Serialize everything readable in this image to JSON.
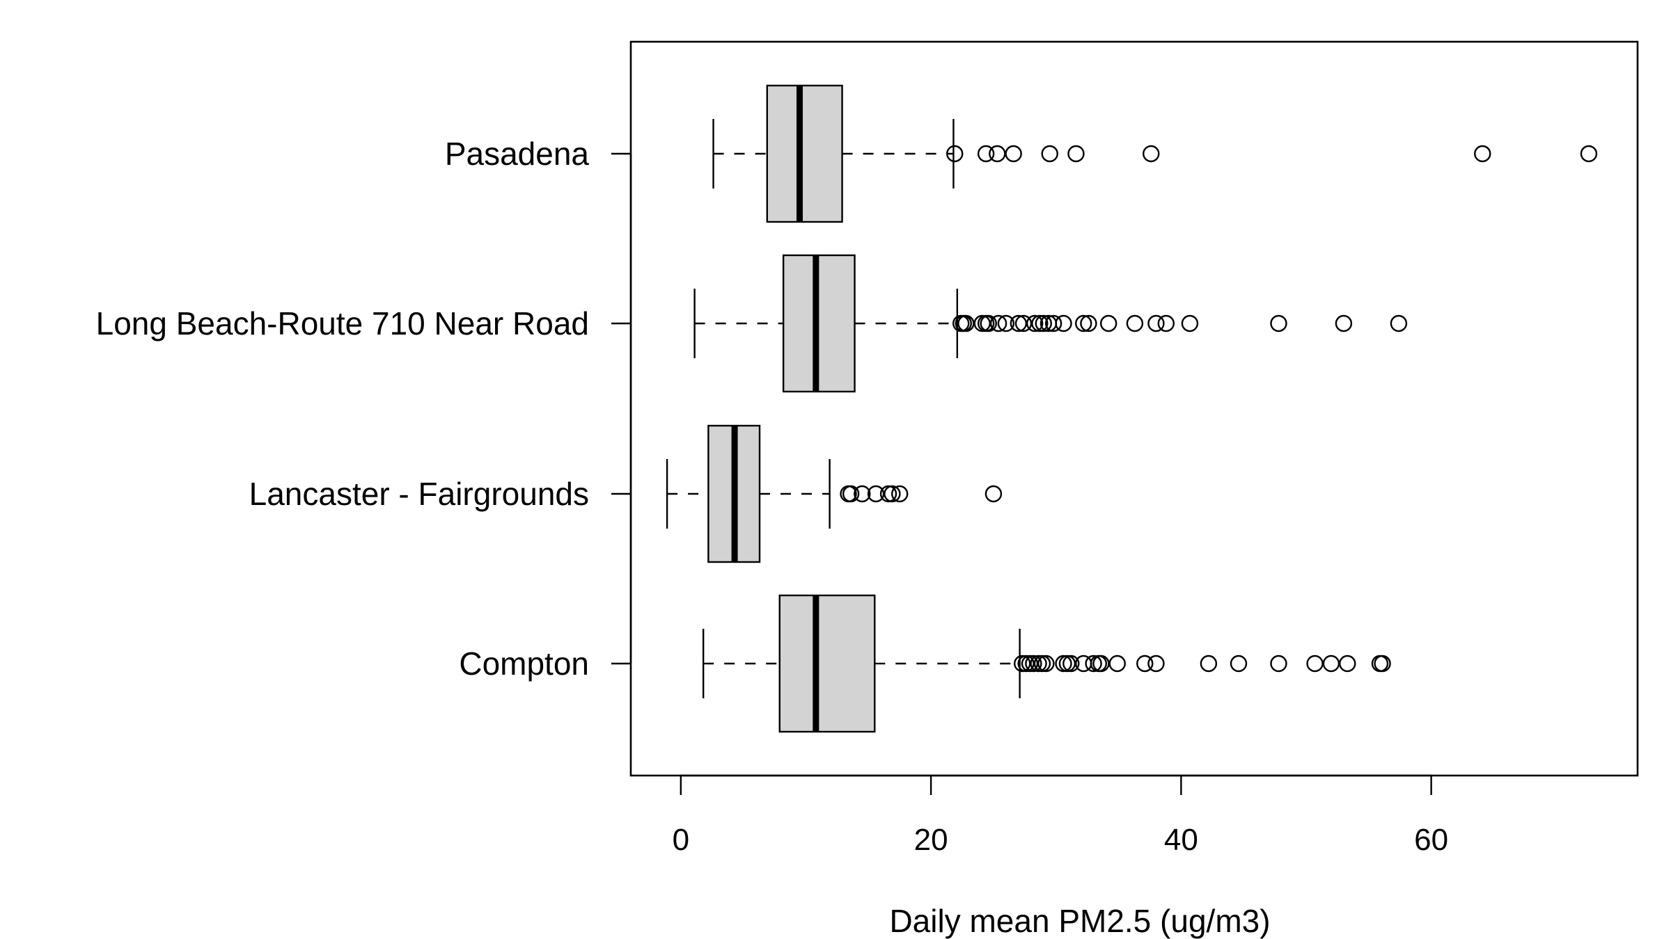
{
  "chart_data": {
    "type": "boxplot",
    "orientation": "horizontal",
    "title": "",
    "xlabel": "Daily mean PM2.5 (ug/m3)",
    "ylabel": "",
    "xlim": [
      -4,
      76.5
    ],
    "xticks": [
      0,
      20,
      40,
      60
    ],
    "xtick_labels": [
      "0",
      "20",
      "40",
      "60"
    ],
    "grid": false,
    "legend": "none",
    "colors": {
      "box_fill": "#d3d3d3",
      "stroke": "#000000",
      "background": "#ffffff"
    },
    "categories": [
      "Pasadena",
      "Long Beach-Route 710 Near Road",
      "Lancaster - Fairgrounds",
      "Compton"
    ],
    "boxes": [
      {
        "label": "Pasadena",
        "whisker_low": 2.6,
        "q1": 6.9,
        "median": 9.5,
        "q3": 12.9,
        "whisker_high": 21.8,
        "outliers": [
          21.9,
          24.4,
          25.3,
          26.6,
          29.5,
          31.6,
          37.6,
          64.1,
          72.6
        ]
      },
      {
        "label": "Long Beach-Route 710 Near Road",
        "whisker_low": 1.1,
        "q1": 8.2,
        "median": 10.8,
        "q3": 13.9,
        "whisker_high": 22.1,
        "outliers": [
          22.4,
          22.6,
          22.8,
          24.1,
          24.4,
          24.6,
          25.4,
          26.0,
          27.0,
          27.4,
          28.3,
          28.7,
          29.0,
          29.4,
          29.8,
          30.6,
          32.2,
          32.6,
          34.2,
          36.3,
          38.0,
          38.8,
          40.7,
          47.8,
          53.0,
          57.4
        ]
      },
      {
        "label": "Lancaster - Fairgrounds",
        "whisker_low": -1.1,
        "q1": 2.2,
        "median": 4.3,
        "q3": 6.3,
        "whisker_high": 11.9,
        "outliers": [
          13.4,
          13.6,
          14.5,
          15.6,
          16.6,
          16.9,
          17.5,
          25.0
        ]
      },
      {
        "label": "Compton",
        "whisker_low": 1.8,
        "q1": 7.9,
        "median": 10.8,
        "q3": 15.5,
        "whisker_high": 27.1,
        "outliers": [
          27.3,
          27.6,
          27.9,
          28.2,
          28.6,
          28.9,
          29.2,
          30.6,
          30.9,
          31.2,
          32.2,
          33.0,
          33.4,
          33.6,
          34.9,
          37.1,
          38.0,
          42.2,
          44.6,
          47.8,
          50.7,
          52.0,
          53.3,
          55.9,
          56.1
        ]
      }
    ]
  }
}
